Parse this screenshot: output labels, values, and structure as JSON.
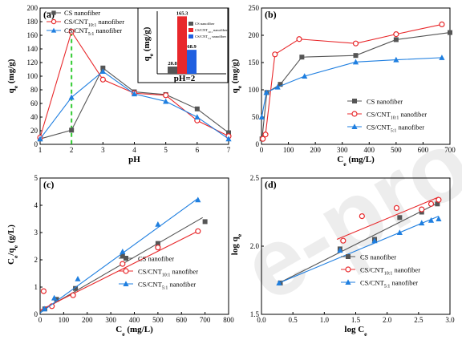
{
  "watermark": "e-proof",
  "chart_data": [
    {
      "panel": "(a)",
      "type": "line",
      "xlabel": "pH",
      "ylabel": "q_e (mg/g)",
      "xlim": [
        1,
        7
      ],
      "ylim": [
        0,
        200
      ],
      "xticks": [
        1,
        2,
        3,
        4,
        5,
        6,
        7
      ],
      "yticks": [
        0,
        20,
        40,
        60,
        80,
        100,
        120,
        140,
        160,
        180,
        200
      ],
      "x": [
        1,
        2,
        3,
        4,
        5,
        6,
        7
      ],
      "series": [
        {
          "name": "CS nanofiber",
          "marker": "square",
          "color": "#555555",
          "values": [
            8,
            20.8,
            112,
            77,
            73,
            52,
            17
          ]
        },
        {
          "name": "CS/CNT_{10:1} nanofiber",
          "marker": "circle",
          "color": "#e8282b",
          "values": [
            10,
            165.3,
            95,
            75,
            72,
            35,
            12
          ]
        },
        {
          "name": "CS/CNT_{5:1} nanofiber",
          "marker": "triangle",
          "color": "#1f7fe0",
          "values": [
            8,
            68.9,
            107,
            74,
            63,
            40,
            8
          ]
        }
      ],
      "vline": {
        "x": 2,
        "color": "#33cc33"
      },
      "inset": {
        "type": "bar",
        "ylabel": "q_e (mg/g)",
        "xlabel": "pH=2",
        "legend": [
          "CS nanofiber",
          "CS/CNT_{10:1} nanofiber",
          "CS/CNT_{5:1} nanofiber"
        ],
        "values": [
          20.8,
          165.3,
          68.9
        ],
        "labels": [
          "20.8",
          "165.3",
          "68.9"
        ],
        "colors": [
          "#555555",
          "#e8282b",
          "#1f5fe0"
        ]
      }
    },
    {
      "panel": "(b)",
      "type": "line",
      "xlabel": "C_e (mg/L)",
      "ylabel": "q_e (mg/g)",
      "xlim": [
        0,
        700
      ],
      "ylim": [
        0,
        250
      ],
      "xticks": [
        0,
        100,
        200,
        300,
        400,
        500,
        600,
        700
      ],
      "yticks": [
        0,
        50,
        100,
        150,
        200,
        250
      ],
      "legend": "bottom-right",
      "series": [
        {
          "name": "CS nanofiber",
          "marker": "square",
          "color": "#555555",
          "x": [
            2,
            20,
            70,
            150,
            350,
            500,
            700
          ],
          "y": [
            10,
            95,
            110,
            160,
            163,
            192,
            205
          ]
        },
        {
          "name": "CS/CNT_{10:1} nanofiber",
          "marker": "circle",
          "color": "#e8282b",
          "x": [
            5,
            15,
            50,
            140,
            350,
            500,
            670
          ],
          "y": [
            10,
            18,
            165,
            193,
            185,
            202,
            220
          ]
        },
        {
          "name": "CS/CNT_{5:1} nanofiber",
          "marker": "triangle",
          "color": "#1f7fe0",
          "x": [
            1,
            18,
            60,
            160,
            350,
            500,
            670
          ],
          "y": [
            50,
            95,
            105,
            125,
            151,
            155,
            159
          ]
        }
      ]
    },
    {
      "panel": "(c)",
      "type": "scatter",
      "xlabel": "C_e (mg/L)",
      "ylabel": "C_e/q_e (g/L)",
      "xlim": [
        0,
        800
      ],
      "ylim": [
        0,
        5
      ],
      "xticks": [
        0,
        100,
        200,
        300,
        400,
        500,
        600,
        700,
        800
      ],
      "yticks": [
        0,
        1,
        2,
        3,
        4,
        5
      ],
      "legend": "bottom-right",
      "series": [
        {
          "name": "CS nanofiber",
          "marker": "square",
          "color": "#555555",
          "x": [
            20,
            70,
            150,
            350,
            500,
            700
          ],
          "y": [
            0.2,
            0.55,
            0.95,
            2.15,
            2.6,
            3.4
          ],
          "fit": [
            [
              0,
              0.1
            ],
            [
              690,
              3.55
            ]
          ]
        },
        {
          "name": "CS/CNT_{10:1} nanofiber",
          "marker": "circle",
          "color": "#e8282b",
          "x": [
            15,
            50,
            140,
            350,
            500,
            670
          ],
          "y": [
            0.85,
            0.3,
            0.7,
            1.85,
            2.45,
            3.05
          ],
          "fit": [
            [
              0,
              0.15
            ],
            [
              670,
              3.05
            ]
          ]
        },
        {
          "name": "CS/CNT_{5:1} nanofiber",
          "marker": "triangle",
          "color": "#1f7fe0",
          "x": [
            18,
            60,
            160,
            350,
            500,
            670
          ],
          "y": [
            0.2,
            0.6,
            1.3,
            2.3,
            3.3,
            4.2
          ],
          "fit": [
            [
              0,
              0.05
            ],
            [
              670,
              4.25
            ]
          ]
        }
      ]
    },
    {
      "panel": "(d)",
      "type": "scatter",
      "xlabel": "log C_e",
      "ylabel": "log q_e",
      "xlim": [
        0,
        3
      ],
      "ylim": [
        1.5,
        2.5
      ],
      "xticks": [
        0,
        0.5,
        1,
        1.5,
        2,
        2.5,
        3
      ],
      "xtick_labels": [
        "0.0",
        "0.5",
        "1.0",
        "1.5",
        "2.0",
        "2.5",
        "3.0"
      ],
      "yticks": [
        1.5,
        2.0,
        2.5
      ],
      "ytick_labels": [
        "1.5",
        "2.0",
        "2.5"
      ],
      "legend": "bottom-right",
      "series": [
        {
          "name": "CS nanofiber",
          "marker": "square",
          "color": "#555555",
          "x": [
            0.3,
            1.25,
            1.8,
            2.2,
            2.55,
            2.8
          ],
          "y": [
            1.73,
            1.98,
            2.05,
            2.21,
            2.25,
            2.31
          ],
          "fit": [
            [
              0.28,
              1.73
            ],
            [
              2.82,
              2.32
            ]
          ]
        },
        {
          "name": "CS/CNT_{10:1} nanofiber",
          "marker": "circle",
          "color": "#e8282b",
          "x": [
            1.3,
            1.6,
            2.15,
            2.55,
            2.7,
            2.82
          ],
          "y": [
            2.04,
            2.22,
            2.28,
            2.27,
            2.31,
            2.34
          ],
          "fit": [
            [
              1.2,
              2.05
            ],
            [
              2.82,
              2.36
            ]
          ]
        },
        {
          "name": "CS/CNT_{5:1} nanofiber",
          "marker": "triangle",
          "color": "#1f7fe0",
          "x": [
            0.28,
            1.25,
            1.8,
            2.2,
            2.55,
            2.7,
            2.82
          ],
          "y": [
            1.73,
            1.97,
            2.04,
            2.1,
            2.17,
            2.19,
            2.2
          ],
          "fit": [
            [
              0.28,
              1.73
            ],
            [
              2.82,
              2.22
            ]
          ]
        }
      ]
    }
  ]
}
